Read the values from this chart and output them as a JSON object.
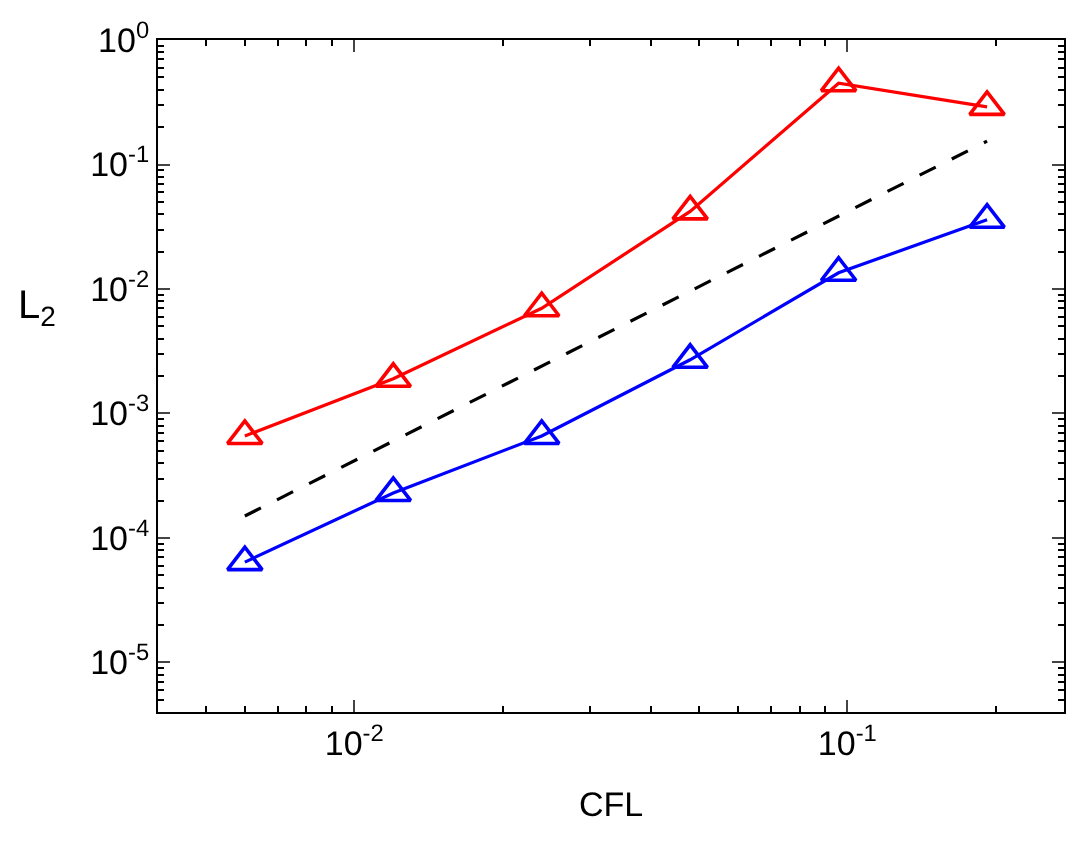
{
  "chart_data": {
    "type": "line",
    "xlabel": "CFL",
    "ylabel": "L$_{2}$",
    "log": "xy",
    "marker": "triangle",
    "x": [
      0.006,
      0.012,
      0.024,
      0.048,
      0.096,
      0.192
    ],
    "series": [
      {
        "color": "#ff0000",
        "values": [
          0.00066,
          0.0019,
          0.007,
          0.042,
          0.45,
          0.29
        ]
      },
      {
        "color": "#0000ff",
        "values": [
          6.4e-05,
          0.00023,
          0.00066,
          0.0027,
          0.0135,
          0.036
        ]
      },
      {
        "color": "#000000",
        "x": [
          0.006,
          0.192
        ],
        "values": [
          0.00015,
          0.154
        ],
        "marker": "none",
        "line_style": "dashed"
      }
    ],
    "xlim": [
      0.004,
      0.275
    ],
    "ylim": [
      4e-06,
      1
    ],
    "xticks": [
      {
        "value": 0.01,
        "label": "10$^{-2}$"
      },
      {
        "value": 0.1,
        "label": "10$^{-1}$"
      }
    ],
    "yticks": [
      {
        "value": 1e-05,
        "label": "10$^{-5}$"
      },
      {
        "value": 0.0001,
        "label": "10$^{-4}$"
      },
      {
        "value": 0.001,
        "label": "10$^{-3}$"
      },
      {
        "value": 0.01,
        "label": "10$^{-2}$"
      },
      {
        "value": 0.1,
        "label": "10$^{-1}$"
      },
      {
        "value": 1,
        "label": "10$^{0}$"
      }
    ]
  }
}
